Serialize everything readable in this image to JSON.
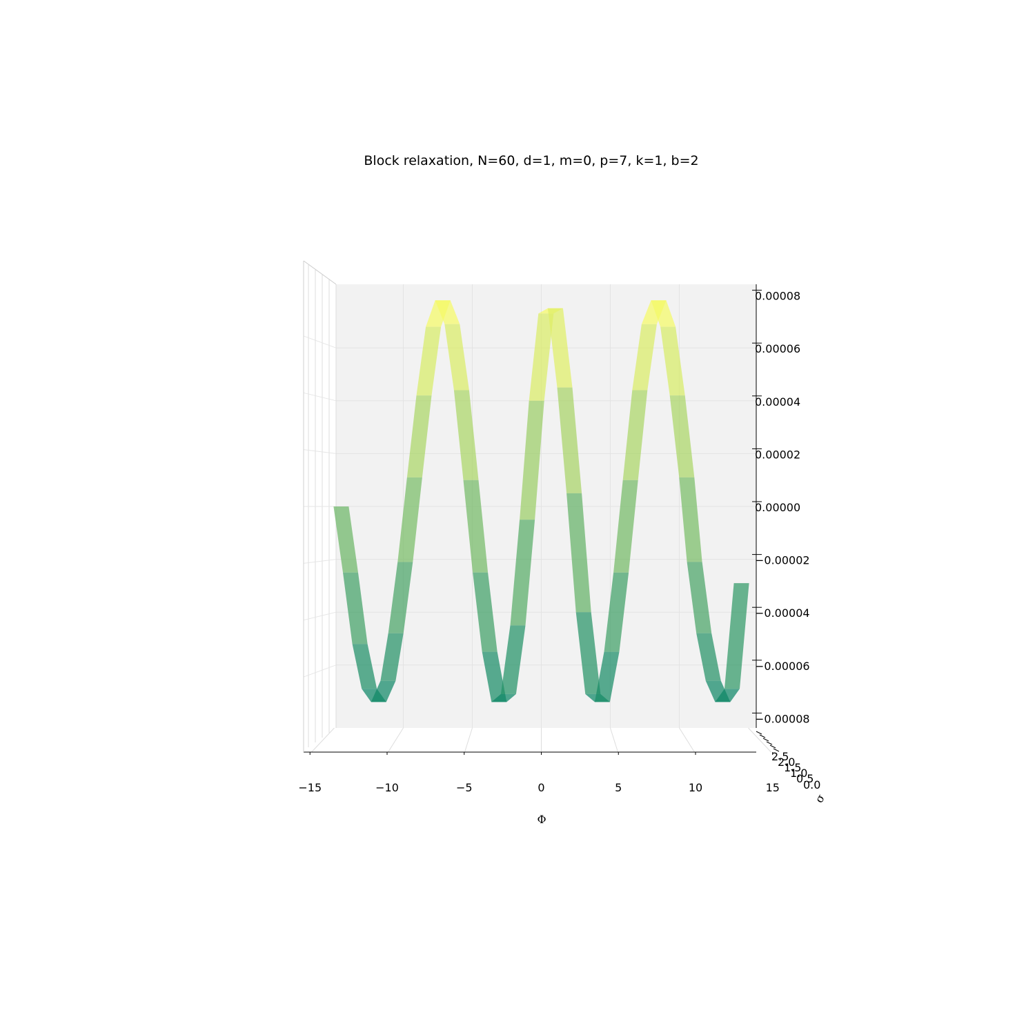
{
  "chart_data": {
    "type": "surface3d",
    "title": "Block relaxation, N=60, d=1, m=0, p=7, k=1, b=2",
    "xlabel": "Φ",
    "ylabel": "σ",
    "zlabel": "",
    "xlim": [
      -15,
      15
    ],
    "ylim": [
      0,
      2.5
    ],
    "zlim": [
      -8e-05,
      8e-05
    ],
    "x_ticks": [
      "−15",
      "−10",
      "−5",
      "0",
      "5",
      "10",
      "15"
    ],
    "y_ticks": [
      "0.0",
      "0.5",
      "1.0",
      "1.5",
      "2.0",
      "2.5"
    ],
    "z_ticks": [
      "0.00008",
      "0.00006",
      "0.00004",
      "0.00002",
      "0.00000",
      "−0.00002",
      "−0.00004",
      "−0.00006",
      "−0.00008"
    ],
    "colormap": "summer",
    "grid": true,
    "view": "front (elevation 0°)",
    "series": [
      {
        "x": [
          -12.8,
          -12.2,
          -11.6,
          -11.0,
          -10.4,
          -9.8,
          -9.3,
          -8.7,
          -8.1,
          -7.5,
          -6.9,
          -6.3,
          -5.7,
          -5.1,
          -4.5,
          -3.9,
          -3.3,
          -2.7,
          -2.1,
          -1.5,
          -0.9,
          -0.3,
          0.3,
          0.9,
          1.5,
          2.1,
          2.7,
          3.3,
          3.9,
          4.5,
          5.1,
          5.7,
          6.3,
          6.9,
          7.5,
          8.1,
          8.7,
          9.3,
          9.8,
          10.4,
          11.0,
          11.6,
          12.2,
          12.8
        ],
        "z": [
          0.0,
          -2.5e-05,
          -5.2e-05,
          -6.9e-05,
          -7.4e-05,
          -6.6e-05,
          -4.8e-05,
          -2.1e-05,
          1.1e-05,
          4.2e-05,
          6.8e-05,
          7.8e-05,
          6.9e-05,
          4.4e-05,
          1e-05,
          -2.5e-05,
          -5.5e-05,
          -7.4e-05,
          -7.1e-05,
          -4.5e-05,
          -5e-06,
          4e-05,
          7.3e-05,
          7.5e-05,
          4.5e-05,
          5e-06,
          -4e-05,
          -7.1e-05,
          -7.4e-05,
          -5.5e-05,
          -2.5e-05,
          1e-05,
          4.4e-05,
          6.9e-05,
          7.8e-05,
          6.8e-05,
          4.2e-05,
          1.1e-05,
          -2.1e-05,
          -4.8e-05,
          -6.6e-05,
          -7.4e-05,
          -6.9e-05,
          -2.9e-05
        ]
      }
    ]
  }
}
